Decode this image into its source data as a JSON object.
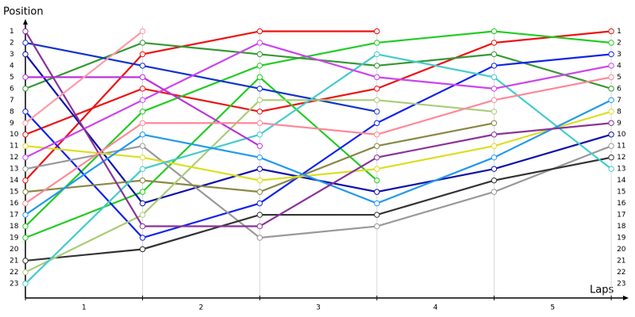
{
  "chart_data": {
    "type": "line",
    "y_label": "Position",
    "x_label": "Laps",
    "x": [
      0,
      1,
      2,
      3,
      4,
      5
    ],
    "xlim": [
      0,
      5.135
    ],
    "xticks": [
      {
        "value": 0.5,
        "label": "1"
      },
      {
        "value": 1.5,
        "label": "2"
      },
      {
        "value": 2.5,
        "label": "3"
      },
      {
        "value": 3.5,
        "label": "4"
      },
      {
        "value": 4.5,
        "label": "5"
      }
    ],
    "ylim": [
      24.25,
      0
    ],
    "yticks": [
      1,
      2,
      3,
      4,
      5,
      6,
      7,
      8,
      9,
      10,
      11,
      12,
      13,
      14,
      15,
      16,
      17,
      18,
      19,
      20,
      21,
      22,
      23
    ],
    "series": [
      {
        "color": "#ee1111",
        "values": [
          14,
          3,
          1,
          1,
          null,
          null
        ]
      },
      {
        "color": "#ee1111",
        "values": [
          10,
          6,
          8,
          6,
          2,
          1
        ]
      },
      {
        "color": "#22cc22",
        "values": [
          19,
          15,
          5,
          14,
          null,
          null
        ]
      },
      {
        "color": "#22cc22",
        "values": [
          18,
          8,
          4,
          2,
          1,
          2
        ]
      },
      {
        "color": "#339933",
        "values": [
          6,
          2,
          3,
          4,
          3,
          6
        ]
      },
      {
        "color": "#1133cc",
        "values": [
          2,
          4,
          6,
          8,
          null,
          null
        ]
      },
      {
        "color": "#1111aa",
        "values": [
          3,
          16,
          13,
          15,
          13,
          10
        ]
      },
      {
        "color": "#1122ee",
        "values": [
          8,
          19,
          16,
          9,
          4,
          3
        ]
      },
      {
        "color": "#999999",
        "values": [
          13,
          11,
          19,
          18,
          15,
          11
        ]
      },
      {
        "color": "#333333",
        "values": [
          21,
          20,
          17,
          17,
          14,
          12
        ]
      },
      {
        "color": "#888844",
        "values": [
          15,
          14,
          15,
          11,
          9,
          null
        ]
      },
      {
        "color": "#aacc77",
        "values": [
          22,
          17,
          7,
          7,
          8,
          null
        ]
      },
      {
        "color": "#dddd22",
        "values": [
          11,
          12,
          14,
          13,
          11,
          8
        ]
      },
      {
        "color": "#44cccc",
        "values": [
          23,
          13,
          10,
          3,
          5,
          13
        ]
      },
      {
        "color": "#2299ee",
        "values": [
          17,
          10,
          12,
          16,
          12,
          7
        ]
      },
      {
        "color": "#cc44ee",
        "values": [
          12,
          7,
          2,
          5,
          6,
          4
        ]
      },
      {
        "color": "#bb33dd",
        "values": [
          5,
          5,
          11,
          null,
          null,
          null
        ]
      },
      {
        "color": "#883399",
        "values": [
          1,
          18,
          18,
          12,
          10,
          9
        ]
      },
      {
        "color": "#ff8899",
        "values": [
          16,
          9,
          9,
          10,
          7,
          5
        ]
      },
      {
        "color": "#ff99aa",
        "values": [
          9,
          1,
          null,
          null,
          null,
          null
        ]
      }
    ]
  }
}
